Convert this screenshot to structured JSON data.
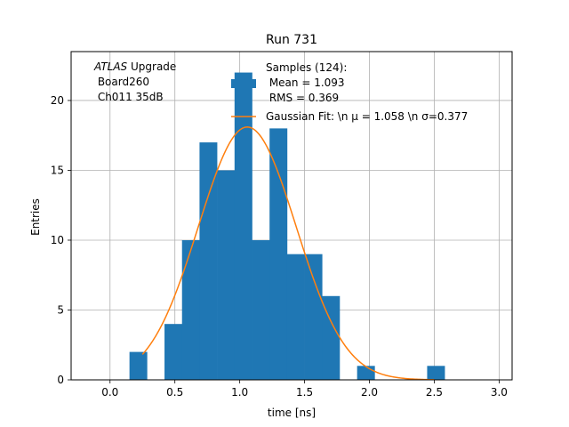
{
  "chart_data": {
    "type": "bar",
    "title": "Run 731",
    "xlabel": "time [ns]",
    "ylabel": "Entries",
    "xlim": [
      -0.3,
      3.1
    ],
    "ylim": [
      0,
      23.5
    ],
    "xticks": [
      "0.0",
      "0.5",
      "1.0",
      "1.5",
      "2.0",
      "2.5",
      "3.0"
    ],
    "xtick_values": [
      0.0,
      0.5,
      1.0,
      1.5,
      2.0,
      2.5,
      3.0
    ],
    "yticks": [
      "0",
      "5",
      "10",
      "15",
      "20"
    ],
    "ytick_values": [
      0,
      5,
      10,
      15,
      20
    ],
    "grid": true,
    "histogram": {
      "bin_edges": [
        0.15,
        0.285,
        0.42,
        0.555,
        0.69,
        0.825,
        0.96,
        1.095,
        1.23,
        1.365,
        1.5,
        1.635,
        1.77,
        1.905,
        2.04,
        2.175,
        2.31,
        2.445,
        2.58
      ],
      "counts": [
        2,
        0,
        4,
        10,
        17,
        15,
        22,
        10,
        18,
        9,
        9,
        6,
        0,
        1,
        0,
        0,
        0,
        1
      ],
      "color": "#1f77b4"
    },
    "gaussian_fit": {
      "mu": 1.058,
      "sigma": 0.377,
      "amplitude": 18.1,
      "x_range": [
        0.25,
        2.5
      ],
      "color": "#ff7f0e"
    },
    "legend": {
      "placement": "top-center",
      "entries": [
        {
          "lines": [
            "Samples (124):",
            " Mean = 1.093",
            " RMS = 0.369"
          ],
          "kind": "patch",
          "color": "#1f77b4"
        },
        {
          "lines": [
            "Gaussian Fit: \\n μ = 1.058 \\n σ=0.377"
          ],
          "kind": "line",
          "color": "#ff7f0e"
        }
      ]
    },
    "annotation": {
      "italic": "ATLAS",
      "line1_rest": " Upgrade",
      "line2": " Board260",
      "line3": " Ch011 35dB"
    }
  }
}
